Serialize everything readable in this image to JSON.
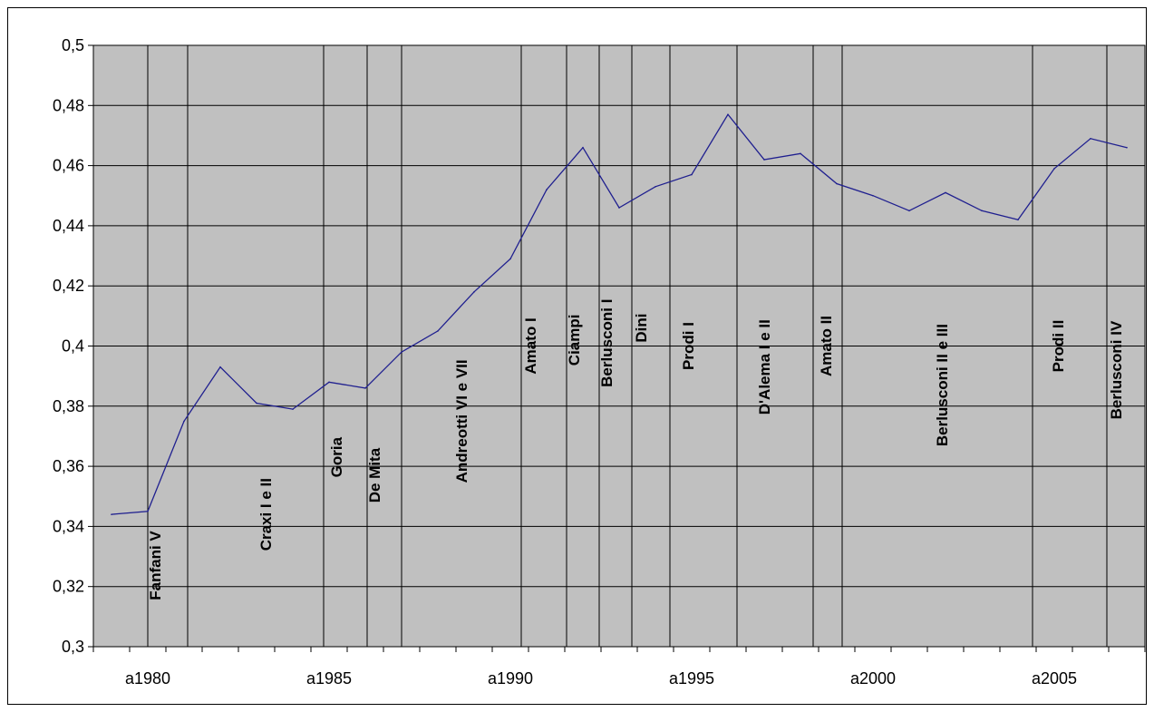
{
  "chart_data": {
    "type": "line",
    "title": "",
    "xlabel": "",
    "ylabel": "",
    "ylim": [
      0.3,
      0.5
    ],
    "y_ticks": [
      "0,3",
      "0,32",
      "0,34",
      "0,36",
      "0,38",
      "0,4",
      "0,42",
      "0,44",
      "0,46",
      "0,48",
      "0,5"
    ],
    "x_tick_labels": [
      {
        "year": 1980,
        "label": "a1980"
      },
      {
        "year": 1985,
        "label": "a1985"
      },
      {
        "year": 1990,
        "label": "a1990"
      },
      {
        "year": 1995,
        "label": "a1995"
      },
      {
        "year": 2000,
        "label": "a2000"
      },
      {
        "year": 2005,
        "label": "a2005"
      }
    ],
    "grid": true,
    "legend": "none",
    "colors": {
      "plot_background": "#c0c0c0",
      "line": "#1f1f8f",
      "gridline": "#000000"
    },
    "series": [
      {
        "x": [
          1979.5,
          1980.5,
          1981.5,
          1982.5,
          1983.5,
          1984.5,
          1985.5,
          1986.5,
          1987.5,
          1988.5,
          1989.5,
          1990.5,
          1991.5,
          1992.5,
          1993.5,
          1994.5,
          1995.5,
          1996.5,
          1997.5,
          1998.5,
          1999.5,
          2000.5,
          2001.5,
          2002.5,
          2003.5,
          2004.5,
          2005.5,
          2006.5,
          2007.5
        ],
        "values": [
          0.344,
          0.345,
          0.375,
          0.393,
          0.381,
          0.379,
          0.388,
          0.386,
          0.398,
          0.405,
          0.418,
          0.429,
          0.452,
          0.466,
          0.446,
          0.453,
          0.457,
          0.477,
          0.462,
          0.464,
          0.454,
          0.45,
          0.445,
          0.451,
          0.445,
          0.442,
          0.459,
          0.469,
          0.466
        ]
      }
    ],
    "governments": [
      {
        "label": "Fanfani V",
        "line_year": 1980.5,
        "label_year": 1980.85,
        "label_y": 0.327
      },
      {
        "label": "Craxi I e II",
        "line_year": 1981.6,
        "label_year": 1983.9,
        "label_y": 0.344
      },
      {
        "label": "Goria",
        "line_year": 1985.35,
        "label_year": 1985.85,
        "label_y": 0.363
      },
      {
        "label": "De Mita",
        "line_year": 1986.55,
        "label_year": 1986.9,
        "label_y": 0.357
      },
      {
        "label": "Andreotti VI e VII",
        "line_year": 1987.5,
        "label_year": 1989.3,
        "label_y": 0.375
      },
      {
        "label": "Amato I",
        "line_year": 1990.8,
        "label_year": 1991.2,
        "label_y": 0.4
      },
      {
        "label": "Ciampi",
        "line_year": 1992.05,
        "label_year": 1992.4,
        "label_y": 0.402
      },
      {
        "label": "Berlusconi I",
        "line_year": 1992.95,
        "label_year": 1993.3,
        "label_y": 0.401
      },
      {
        "label": "Dini",
        "line_year": 1993.85,
        "label_year": 1994.25,
        "label_y": 0.406
      },
      {
        "label": "Prodi I",
        "line_year": 1994.9,
        "label_year": 1995.55,
        "label_y": 0.4
      },
      {
        "label": "D'Alema I e II",
        "line_year": 1996.75,
        "label_year": 1997.65,
        "label_y": 0.393
      },
      {
        "label": "Amato II",
        "line_year": 1998.85,
        "label_year": 1999.35,
        "label_y": 0.4
      },
      {
        "label": "Berlusconi II e III",
        "line_year": 1999.65,
        "label_year": 2002.55,
        "label_y": 0.387
      },
      {
        "label": "Prodi II",
        "line_year": 2004.9,
        "label_year": 2005.75,
        "label_y": 0.4
      },
      {
        "label": "Berlusconi IV",
        "line_year": 2006.95,
        "label_year": 2007.35,
        "label_y": 0.392
      }
    ]
  }
}
